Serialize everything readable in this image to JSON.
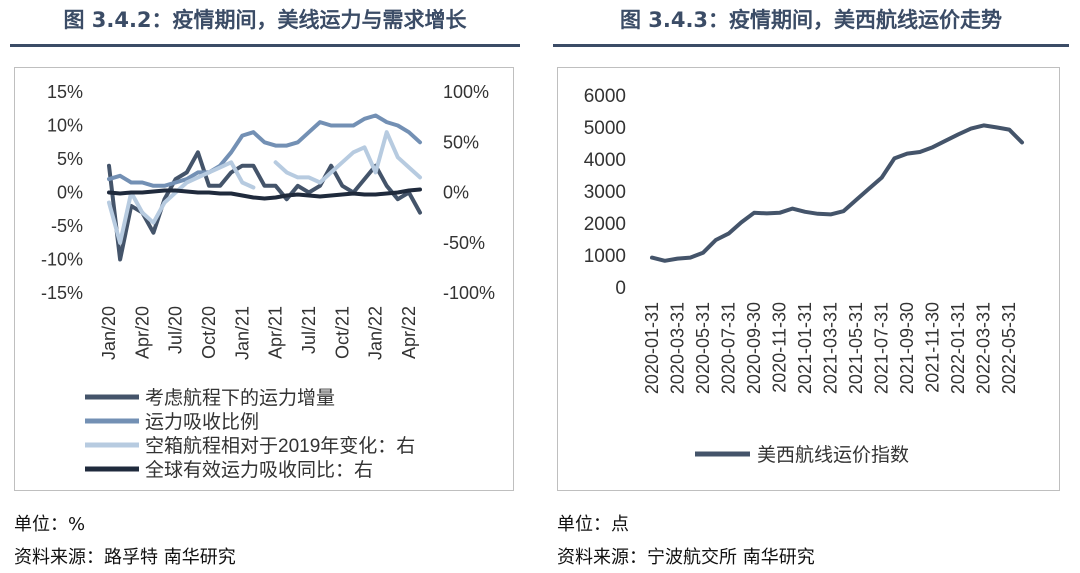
{
  "left": {
    "title": "图 3.4.2：疫情期间，美线运力与需求增长",
    "unit": "单位：%",
    "source": "资料来源：路孚特 南华研究",
    "chart_data": {
      "type": "line",
      "title": "图 3.4.2：疫情期间，美线运力与需求增长",
      "categories": [
        "Jan/20",
        "Feb/20",
        "Mar/20",
        "Apr/20",
        "May/20",
        "Jun/20",
        "Jul/20",
        "Aug/20",
        "Sep/20",
        "Oct/20",
        "Nov/20",
        "Dec/20",
        "Jan/21",
        "Feb/21",
        "Mar/21",
        "Apr/21",
        "May/21",
        "Jun/21",
        "Jul/21",
        "Aug/21",
        "Sep/21",
        "Oct/21",
        "Nov/21",
        "Dec/21",
        "Jan/22",
        "Feb/22",
        "Mar/22",
        "Apr/22",
        "May/22"
      ],
      "x_tick_labels": [
        "Jan/20",
        "Apr/20",
        "Jul/20",
        "Oct/20",
        "Jan/21",
        "Apr/21",
        "Jul/21",
        "Oct/21",
        "Jan/22",
        "Apr/22"
      ],
      "y_left": {
        "ticks": [
          "15%",
          "10%",
          "5%",
          "0%",
          "-5%",
          "-10%",
          "-15%"
        ],
        "ylim": [
          -15,
          15
        ]
      },
      "y_right": {
        "ticks": [
          "100%",
          "50%",
          "0%",
          "-50%",
          "-100%"
        ],
        "ylim": [
          -100,
          100
        ]
      },
      "series": [
        {
          "name": "考虑航程下的运力增量",
          "axis": "left",
          "color": "#44546a",
          "values": [
            4,
            -10,
            -2,
            -3,
            -6,
            -1,
            2,
            3,
            6,
            1,
            1,
            3,
            4,
            4,
            1,
            1,
            -1,
            1,
            0,
            1,
            4,
            1,
            0,
            2,
            4,
            1,
            -1,
            0,
            -3
          ]
        },
        {
          "name": "运力吸收比例",
          "axis": "left",
          "color": "#7390b4",
          "values": [
            2,
            2.5,
            1.5,
            1.5,
            1,
            1,
            1.5,
            2,
            3,
            3,
            4,
            6,
            8.5,
            9,
            7.5,
            7,
            7,
            7.5,
            9,
            10.5,
            10,
            10,
            10,
            11,
            11.5,
            10.5,
            10,
            9,
            7.5
          ]
        },
        {
          "name": "空箱航程相对于2019年变化：右",
          "axis": "right",
          "color": "#b7cbe0",
          "values": [
            -10,
            -50,
            0,
            -20,
            -30,
            -10,
            0,
            10,
            15,
            20,
            25,
            30,
            10,
            5,
            null,
            30,
            20,
            15,
            15,
            10,
            20,
            30,
            40,
            45,
            20,
            60,
            35,
            25,
            15
          ]
        },
        {
          "name": "全球有效运力吸收同比：右",
          "axis": "right",
          "color": "#1f2a3c",
          "values": [
            0,
            -1,
            0,
            0,
            1,
            2,
            2,
            1,
            0,
            0,
            -1,
            -1,
            -3,
            -5,
            -6,
            -5,
            -3,
            -2,
            -3,
            -4,
            -3,
            -2,
            -1,
            -2,
            -2,
            -1,
            0,
            2,
            3
          ]
        }
      ],
      "legend": "bottom-left",
      "grid": false
    }
  },
  "right": {
    "title": "图 3.4.3：疫情期间，美西航线运价走势",
    "unit": "单位：点",
    "source": "资料来源：宁波航交所 南华研究",
    "chart_data": {
      "type": "line",
      "title": "图 3.4.3：疫情期间，美西航线运价走势",
      "x": [
        "2020-01-31",
        "2020-02-29",
        "2020-03-31",
        "2020-04-30",
        "2020-05-31",
        "2020-06-30",
        "2020-07-31",
        "2020-08-31",
        "2020-09-30",
        "2020-10-31",
        "2020-11-30",
        "2020-12-31",
        "2021-01-31",
        "2021-02-28",
        "2021-03-31",
        "2021-04-30",
        "2021-05-31",
        "2021-06-30",
        "2021-07-31",
        "2021-08-31",
        "2021-09-30",
        "2021-10-31",
        "2021-11-30",
        "2021-12-31",
        "2022-01-31",
        "2022-02-28",
        "2022-03-31",
        "2022-04-30",
        "2022-05-31",
        "2022-06-30"
      ],
      "x_tick_labels": [
        "2020-01-31",
        "2020-03-31",
        "2020-05-31",
        "2020-07-31",
        "2020-09-30",
        "2020-11-30",
        "2021-01-31",
        "2021-03-31",
        "2021-05-31",
        "2021-07-31",
        "2021-09-30",
        "2021-11-30",
        "2022-01-31",
        "2022-03-31",
        "2022-05-31"
      ],
      "y_ticks": [
        "6000",
        "5000",
        "4000",
        "3000",
        "2000",
        "1000",
        "0"
      ],
      "ylim": [
        0,
        6000
      ],
      "series": [
        {
          "name": "美西航线运价指数",
          "color": "#44546a",
          "values": [
            950,
            850,
            920,
            950,
            1100,
            1500,
            1700,
            2050,
            2350,
            2330,
            2350,
            2480,
            2380,
            2320,
            2300,
            2400,
            2750,
            3100,
            3450,
            4050,
            4200,
            4250,
            4400,
            4600,
            4800,
            4980,
            5080,
            5020,
            4950,
            4550
          ]
        }
      ],
      "legend": "bottom-center",
      "grid": false
    }
  }
}
